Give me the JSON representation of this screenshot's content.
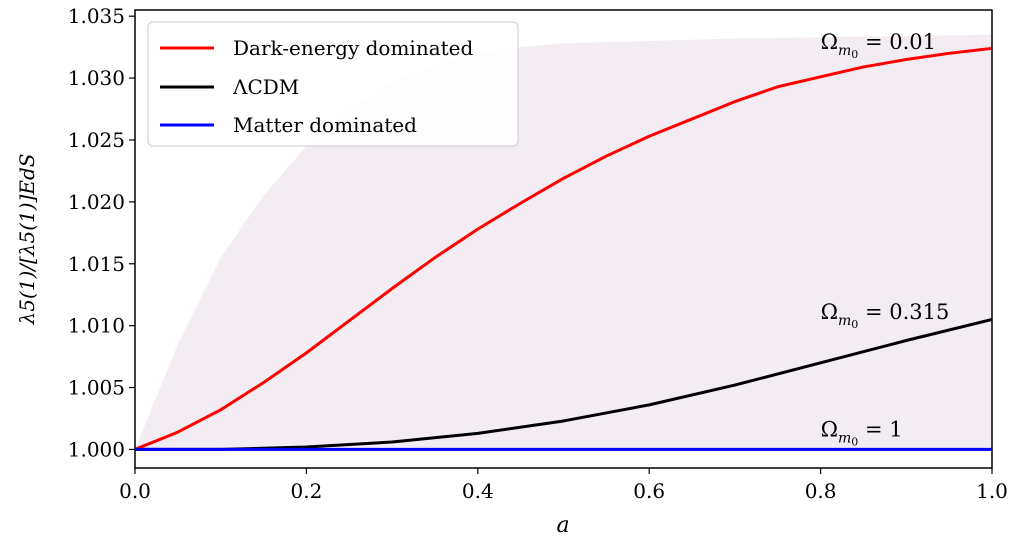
{
  "chart_data": {
    "type": "line",
    "xlabel": "a",
    "ylabel": "λ5(1)/[λ5(1)]EdS",
    "xlim": [
      0.0,
      1.0
    ],
    "ylim": [
      0.9985,
      1.0355
    ],
    "x_ticks": [
      "0.0",
      "0.2",
      "0.4",
      "0.6",
      "0.8",
      "1.0"
    ],
    "y_ticks": [
      "1.000",
      "1.005",
      "1.010",
      "1.015",
      "1.020",
      "1.025",
      "1.030",
      "1.035"
    ],
    "legend_position": "top-left",
    "band_color": "#f3ecf2",
    "band_upper": {
      "x": [
        0.0,
        0.05,
        0.1,
        0.15,
        0.2,
        0.25,
        0.3,
        0.35,
        0.4,
        0.45,
        0.5,
        0.6,
        0.7,
        0.8,
        0.9,
        1.0
      ],
      "y": [
        1.0,
        1.0085,
        1.0155,
        1.0205,
        1.0245,
        1.0275,
        1.0297,
        1.0311,
        1.032,
        1.0325,
        1.0328,
        1.033,
        1.0332,
        1.0333,
        1.0334,
        1.0335
      ]
    },
    "series": [
      {
        "name": "Dark-energy dominated",
        "color": "#ff0000",
        "x": [
          0.0,
          0.05,
          0.1,
          0.15,
          0.2,
          0.25,
          0.3,
          0.35,
          0.4,
          0.45,
          0.5,
          0.55,
          0.6,
          0.65,
          0.7,
          0.75,
          0.8,
          0.85,
          0.9,
          0.95,
          1.0
        ],
        "y": [
          1.0,
          1.0014,
          1.0032,
          1.0054,
          1.0078,
          1.0104,
          1.013,
          1.0155,
          1.0178,
          1.0199,
          1.0219,
          1.0237,
          1.0253,
          1.0267,
          1.0281,
          1.0293,
          1.0301,
          1.0309,
          1.0315,
          1.032,
          1.0324
        ]
      },
      {
        "name": "ΛCDM",
        "color": "#000000",
        "x": [
          0.0,
          0.1,
          0.2,
          0.3,
          0.4,
          0.5,
          0.6,
          0.7,
          0.8,
          0.9,
          1.0
        ],
        "y": [
          1.0,
          1.0,
          1.0002,
          1.0006,
          1.0013,
          1.0023,
          1.0036,
          1.0052,
          1.007,
          1.0088,
          1.0105
        ]
      },
      {
        "name": "Matter dominated",
        "color": "#0000ff",
        "x": [
          0.0,
          1.0
        ],
        "y": [
          1.0,
          1.0
        ]
      }
    ],
    "annotations": [
      {
        "text": "Ω",
        "sub": "m",
        "subsub": "0",
        "rest": " = 0.01",
        "x": 0.8,
        "y": 1.0325
      },
      {
        "text": "Ω",
        "sub": "m",
        "subsub": "0",
        "rest": " = 0.315",
        "x": 0.8,
        "y": 1.0107
      },
      {
        "text": "Ω",
        "sub": "m",
        "subsub": "0",
        "rest": " = 1",
        "x": 0.8,
        "y": 1.0012
      }
    ]
  }
}
